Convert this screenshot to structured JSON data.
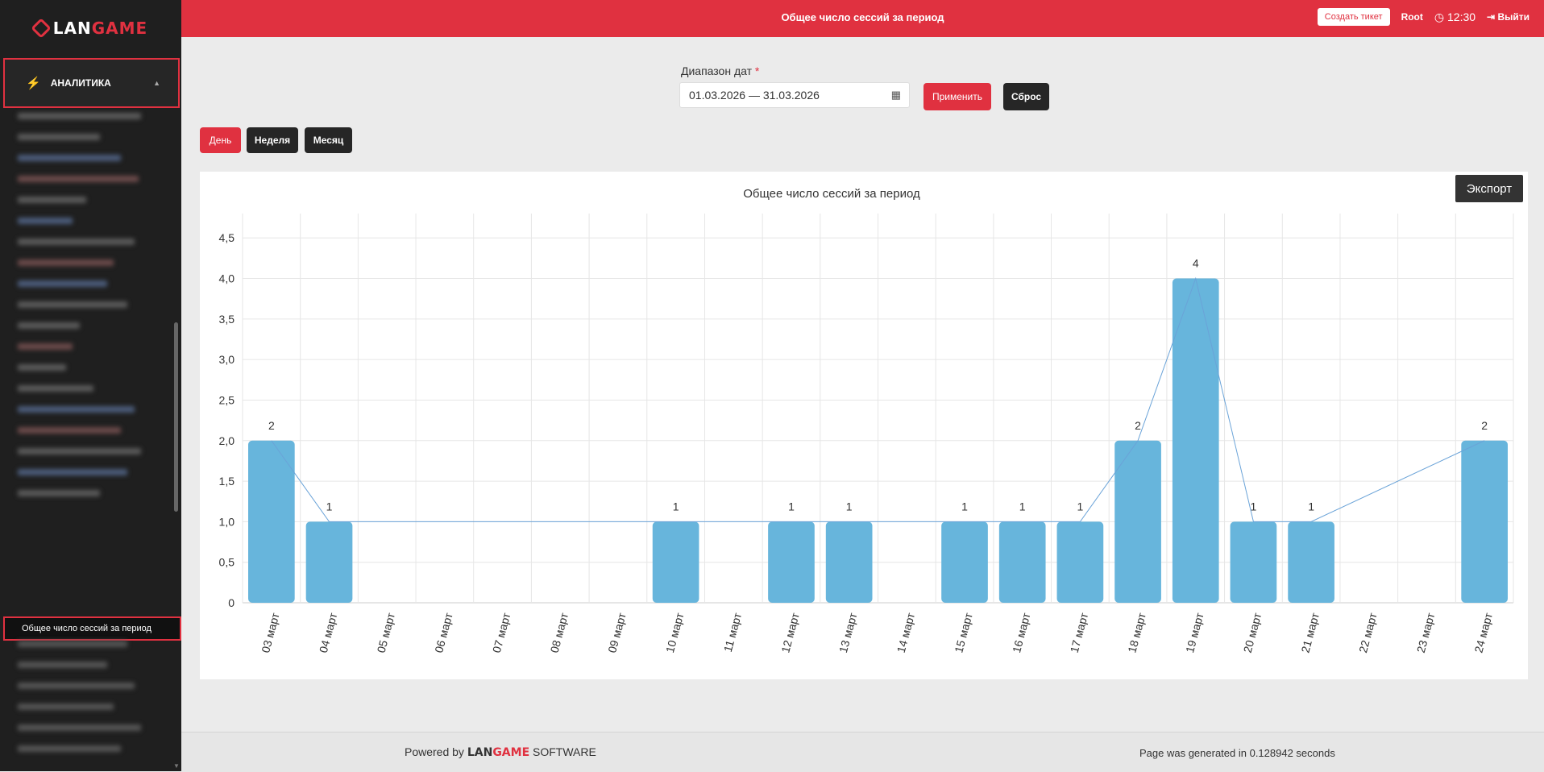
{
  "logo": {
    "lan": "LAN",
    "game": "GAME"
  },
  "sidebar": {
    "section_label": "АНАЛИТИКА",
    "active_item": "Общее число сессий за период"
  },
  "header": {
    "title": "Общее число сессий за период",
    "ticket_button": "Создать тикет",
    "user": "Root",
    "time": "12:30",
    "logout": "Выйти"
  },
  "filters": {
    "range_label": "Диапазон дат",
    "required_mark": "*",
    "date_range": "01.03.2026 — 31.03.2026",
    "apply": "Применить",
    "reset": "Сброс",
    "period_buttons": [
      "День",
      "Неделя",
      "Месяц"
    ],
    "active_period": "День"
  },
  "export_button": "Экспорт",
  "chart_data": {
    "type": "bar",
    "title": "Общее число сессий за период",
    "categories": [
      "03 март",
      "04 март",
      "05 март",
      "06 март",
      "07 март",
      "08 март",
      "09 март",
      "10 март",
      "11 март",
      "12 март",
      "13 март",
      "14 март",
      "15 март",
      "16 март",
      "17 март",
      "18 март",
      "19 март",
      "20 март",
      "21 март",
      "22 март",
      "23 март",
      "24 март"
    ],
    "values": [
      2,
      1,
      0,
      0,
      0,
      0,
      0,
      1,
      0,
      1,
      1,
      0,
      1,
      1,
      1,
      2,
      4,
      1,
      1,
      0,
      0,
      2
    ],
    "line_overlay": {
      "points": [
        [
          0,
          2
        ],
        [
          1,
          1
        ],
        [
          7,
          1
        ],
        [
          9,
          1
        ],
        [
          10,
          1
        ],
        [
          12,
          1
        ],
        [
          13,
          1
        ],
        [
          14,
          1
        ],
        [
          15,
          2
        ],
        [
          16,
          4
        ],
        [
          17,
          1
        ],
        [
          18,
          1
        ],
        [
          21,
          2
        ]
      ]
    },
    "yticks": [
      "0",
      "0,5",
      "1,0",
      "1,5",
      "2,0",
      "2,5",
      "3,0",
      "3,5",
      "4,0",
      "4,5"
    ],
    "ylim": [
      0,
      4.8
    ],
    "grid": true,
    "bar_color": "#67b5dc",
    "line_color": "#6aa3d8"
  },
  "footer": {
    "powered_by": "Powered by",
    "brand_lan": "LAN",
    "brand_game": "GAME",
    "software": "SOFTWARE",
    "generated": "Page was generated in 0.128942 seconds"
  },
  "colors": {
    "accent": "#e03140",
    "sidebar": "#1f1f1f",
    "dark_button": "#262626"
  }
}
